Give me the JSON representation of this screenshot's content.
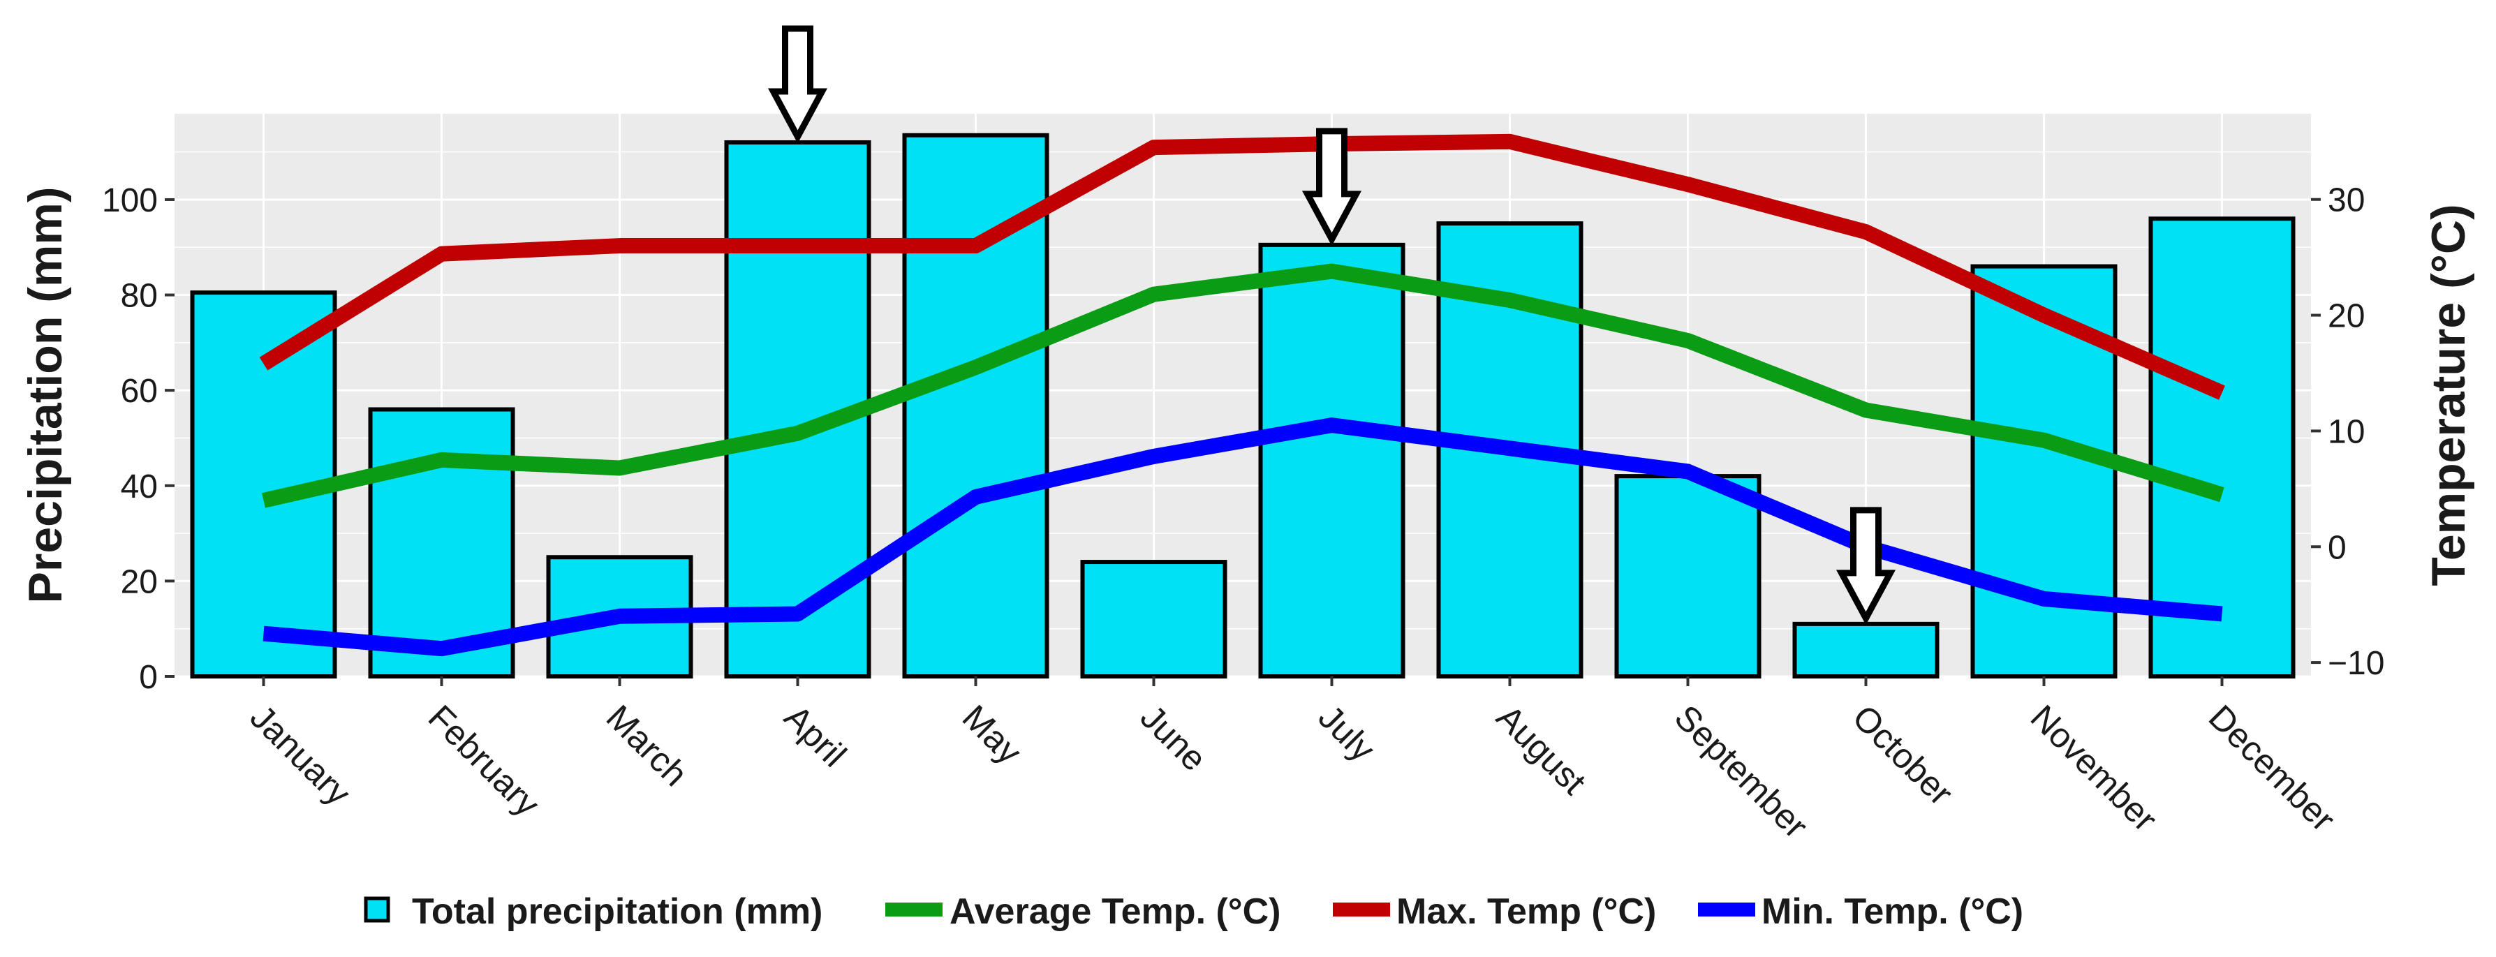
{
  "chart_data": {
    "type": "bar",
    "categories": [
      "January",
      "February",
      "March",
      "April",
      "May",
      "June",
      "July",
      "August",
      "September",
      "October",
      "November",
      "December"
    ],
    "series": [
      {
        "name": "Total precipitation (mm)",
        "type": "bar",
        "axis": "left",
        "color": "#00e1f5",
        "values": [
          80.5,
          56,
          25,
          112,
          113.5,
          24,
          90.5,
          95,
          42,
          11,
          86,
          96
        ]
      },
      {
        "name": "Average Temp. (°C)",
        "type": "line",
        "axis": "right",
        "color": "#0a9c14",
        "values": [
          4,
          7.5,
          6.8,
          9.8,
          15.5,
          21.8,
          23.8,
          21.3,
          17.8,
          11.8,
          9.2,
          4.5
        ]
      },
      {
        "name": "Max. Temp (°C)",
        "type": "line",
        "axis": "right",
        "color": "#c00000",
        "values": [
          15.8,
          25.3,
          26,
          26,
          26,
          34.5,
          34.8,
          35,
          31.3,
          27.2,
          20,
          13.3
        ]
      },
      {
        "name": "Min. Temp. (°C)",
        "type": "line",
        "axis": "right",
        "color": "#0000ff",
        "values": [
          -7.5,
          -8.8,
          -6,
          -5.8,
          4.3,
          7.8,
          10.5,
          8.5,
          6.5,
          0,
          -4.5,
          -5.8
        ]
      }
    ],
    "y_left": {
      "label": "Precipitation (mm)",
      "range": [
        0,
        118
      ],
      "ticks": [
        0,
        20,
        40,
        60,
        80,
        100
      ]
    },
    "y_right": {
      "label": "Temperature (°C)",
      "range": [
        -11.2,
        37.4
      ],
      "ticks": [
        -10,
        0,
        10,
        20,
        30
      ]
    },
    "grid": true,
    "legend_position": "bottom",
    "annotations": [
      {
        "type": "arrow-down",
        "category": "April",
        "target_value": 112,
        "axis": "left"
      },
      {
        "type": "arrow-down",
        "category": "July",
        "target_value": 90.5,
        "axis": "left"
      },
      {
        "type": "arrow-down",
        "category": "October",
        "target_value": 11,
        "axis": "left"
      }
    ]
  }
}
